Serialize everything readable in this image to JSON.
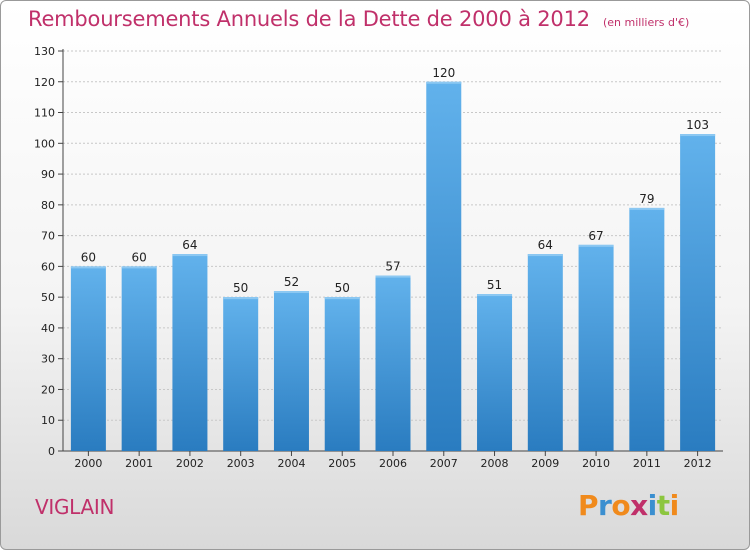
{
  "title": "Remboursements Annuels de la Dette de 2000 à 2012",
  "unit_note": "(en milliers d'€)",
  "commune": "VIGLAIN",
  "logo": {
    "letters": [
      "P",
      "r",
      "o",
      "x",
      "i",
      "t",
      "i"
    ],
    "colors": [
      "#f08a1c",
      "#3b8fd0",
      "#f08a1c",
      "#c0306a",
      "#3b8fd0",
      "#8cc63f",
      "#f08a1c"
    ]
  },
  "colors": {
    "bar_top": "#62b2ec",
    "bar_bottom": "#2a7cc0",
    "title": "#c0306a"
  },
  "chart_data": {
    "type": "bar",
    "categories": [
      "2000",
      "2001",
      "2002",
      "2003",
      "2004",
      "2005",
      "2006",
      "2007",
      "2008",
      "2009",
      "2010",
      "2011",
      "2012"
    ],
    "values": [
      60,
      60,
      64,
      50,
      52,
      50,
      57,
      120,
      51,
      64,
      67,
      79,
      103
    ],
    "title": "Remboursements Annuels de la Dette de 2000 à 2012",
    "xlabel": "",
    "ylabel": "",
    "ylim": [
      0,
      130
    ],
    "yticks": [
      0,
      10,
      20,
      30,
      40,
      50,
      60,
      70,
      80,
      90,
      100,
      110,
      120,
      130
    ],
    "grid": "horizontal dashed",
    "legend": "none"
  }
}
